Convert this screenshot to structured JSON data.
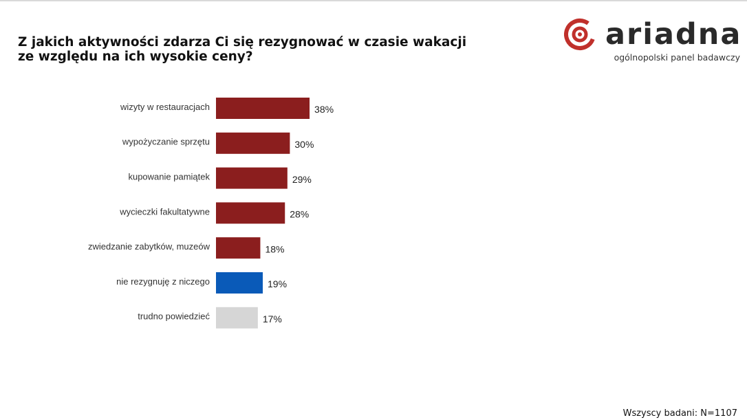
{
  "title": {
    "line1": "Z jakich aktywności zdarza Ci się rezygnować w czasie wakacji",
    "line2": "ze względu na ich wysokie ceny?"
  },
  "logo": {
    "brand_name": "ariadna",
    "tagline": "ogólnopolski panel badawczy"
  },
  "footnote": "Wszyscy badani: N=1107",
  "colors": {
    "primary_bar": "#8b1e1e",
    "neutral_bar": "#d6d6d6",
    "accent_bar": "#0a5ab8",
    "brand_red": "#c0302b"
  },
  "chart_data": {
    "type": "bar",
    "orientation": "horizontal",
    "title": "Z jakich aktywności zdarza Ci się rezygnować w czasie wakacji ze względu na ich wysokie ceny?",
    "categories": [
      "wizyty w restauracjach",
      "wypożyczanie sprzętu",
      "kupowanie pamiątek",
      "wycieczki fakultatywne",
      "zwiedzanie zabytków, muzeów",
      "nie rezygnuję z niczego",
      "trudno powiedzieć"
    ],
    "values": [
      38,
      30,
      29,
      28,
      18,
      19,
      17
    ],
    "value_labels": [
      "38%",
      "30%",
      "29%",
      "28%",
      "18%",
      "19%",
      "17%"
    ],
    "bar_colors": [
      "#8b1e1e",
      "#8b1e1e",
      "#8b1e1e",
      "#8b1e1e",
      "#8b1e1e",
      "#0a5ab8",
      "#d6d6d6"
    ],
    "xlim": [
      0,
      100
    ],
    "unit": "%",
    "grid": false,
    "legend": "none"
  }
}
